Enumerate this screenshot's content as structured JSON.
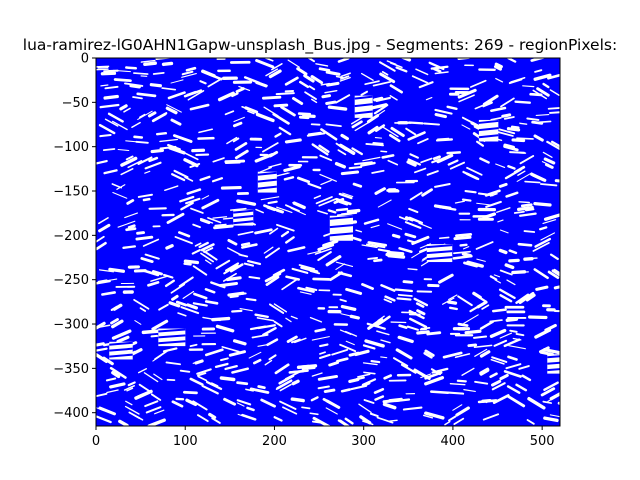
{
  "chart_data": {
    "type": "scatter",
    "title": "lua-ramirez-lG0AHN1Gapw-unsplash_Bus.jpg - Segments: 269 - regionPixels:",
    "xlabel": "",
    "ylabel": "",
    "xlim": [
      0,
      520
    ],
    "ylim": [
      -415,
      0
    ],
    "x_ticks": [
      0,
      100,
      200,
      300,
      400,
      500
    ],
    "y_ticks": [
      0,
      -50,
      -100,
      -150,
      -200,
      -250,
      -300,
      -350,
      -400
    ],
    "grid": false,
    "legend": "none",
    "series_color": "#0000ff",
    "background_color": "#ffffff",
    "segment_grid": {
      "cell_size": 27.5,
      "columns": 19,
      "rows": 15
    },
    "segments_count": 269,
    "white_gap_cells": [
      {
        "x": 385,
        "y": -220
      },
      {
        "x": 440,
        "y": -82
      },
      {
        "x": 192,
        "y": -140
      },
      {
        "x": 275,
        "y": -192
      },
      {
        "x": 85,
        "y": -315
      },
      {
        "x": 520,
        "y": -345
      },
      {
        "x": 28,
        "y": -330
      },
      {
        "x": 165,
        "y": -180
      },
      {
        "x": 300,
        "y": -55
      }
    ]
  }
}
